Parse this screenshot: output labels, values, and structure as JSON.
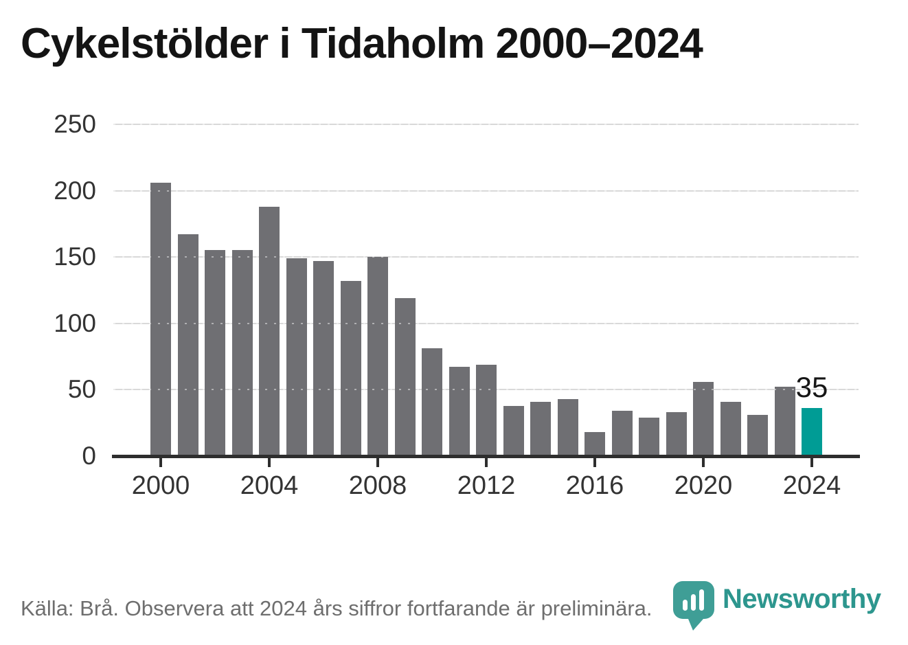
{
  "title": "Cykelstölder i Tidaholm 2000–2024",
  "chart_data": {
    "type": "bar",
    "categories": [
      2000,
      2001,
      2002,
      2003,
      2004,
      2005,
      2006,
      2007,
      2008,
      2009,
      2010,
      2011,
      2012,
      2013,
      2014,
      2015,
      2016,
      2017,
      2018,
      2019,
      2020,
      2021,
      2022,
      2023,
      2024
    ],
    "values": [
      205,
      166,
      154,
      154,
      187,
      148,
      146,
      131,
      149,
      118,
      80,
      66,
      68,
      37,
      40,
      42,
      17,
      33,
      28,
      32,
      55,
      40,
      30,
      51,
      35
    ],
    "title": "Cykelstölder i Tidaholm 2000–2024",
    "xlabel": "",
    "ylabel": "",
    "ylim": [
      0,
      250
    ],
    "yticks": [
      0,
      50,
      100,
      150,
      200,
      250
    ],
    "xticks": [
      2000,
      2004,
      2008,
      2012,
      2016,
      2020,
      2024
    ],
    "grid": true,
    "legend": false,
    "bar_color": "#6f6f73",
    "highlight_category": 2024,
    "highlight_color": "#009c95",
    "annotation": {
      "text": "35",
      "category": 2024
    }
  },
  "footer": {
    "source_note": "Källa: Brå. Observera att 2024 års siffror fortfarande är preliminära."
  },
  "branding": {
    "wordmark": "Newsworthy",
    "logo_icon": "newsworthy-bubble-bar-chart-icon",
    "brand_color": "#2d968e",
    "logo_fill": "#3f9e96"
  }
}
